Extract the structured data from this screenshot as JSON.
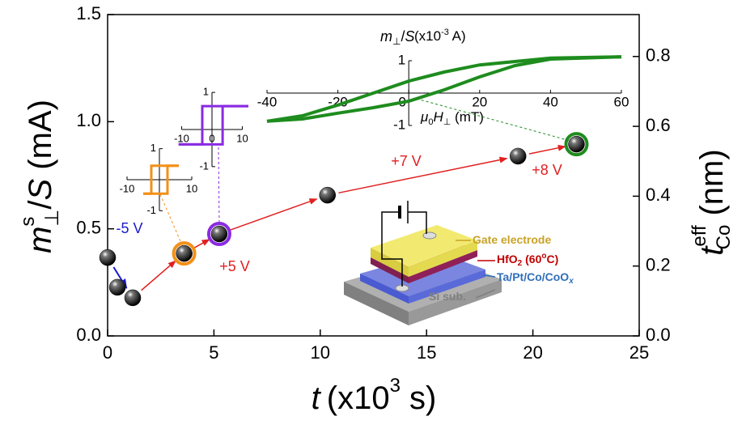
{
  "chart_data": {
    "type": "scatter",
    "x_label": [
      "t",
      "(x10",
      "3",
      " s)"
    ],
    "y_label": [
      "m",
      "s",
      "⊥",
      "/",
      "S",
      " (mA)"
    ],
    "y2_label": [
      "t",
      "eff",
      "Co",
      " (nm)"
    ],
    "xlim": [
      0,
      25
    ],
    "xticks": [
      0,
      5,
      10,
      15,
      20,
      25
    ],
    "ylim": [
      0,
      1.5
    ],
    "yticks": [
      {
        "value": 0,
        "label": "0.0"
      },
      {
        "value": 0.5,
        "label": "0.5"
      },
      {
        "value": 1,
        "label": "1.0"
      },
      {
        "value": 1.5,
        "label": "1.5"
      }
    ],
    "y2lim": [
      0,
      0.92
    ],
    "y2ticks": [
      {
        "value": 0,
        "label": "0.0"
      },
      {
        "value": 0.2,
        "label": "0.2"
      },
      {
        "value": 0.4,
        "label": "0.4"
      },
      {
        "value": 0.6,
        "label": "0.6"
      },
      {
        "value": 0.8,
        "label": "0.8"
      }
    ],
    "series": [
      {
        "color": "#000000",
        "x": [
          0,
          0.46,
          1.18,
          3.6,
          5.25,
          10.34,
          19.3,
          22.05
        ],
        "values": [
          0.366,
          0.227,
          0.178,
          0.385,
          0.476,
          0.657,
          0.839,
          0.895
        ]
      }
    ],
    "annotations": [
      {
        "text": "-5 V",
        "color": "#1a1acc"
      },
      {
        "text": "+5 V",
        "color": "#e02020"
      },
      {
        "text": "+7 V",
        "color": "#e02020"
      },
      {
        "text": "+8 V",
        "color": "#e02020"
      }
    ],
    "insets": [
      {
        "type": "line",
        "color": "#f39018",
        "xlim": [
          -12,
          12
        ],
        "ylim": [
          -1.2,
          1.2
        ],
        "xticks": [
          -10,
          10
        ],
        "yticks": [
          -1,
          1
        ],
        "series": [
          {
            "x": [
              -5,
              2.5,
              2.5,
              6
            ],
            "values": [
              -0.45,
              -0.45,
              0.45,
              0.45
            ]
          },
          {
            "x": [
              6,
              -2.5,
              -2.5,
              -5
            ],
            "values": [
              0.45,
              0.45,
              -0.45,
              -0.45
            ]
          }
        ]
      },
      {
        "type": "line",
        "color": "#8a2be2",
        "xlim": [
          -12,
          12
        ],
        "ylim": [
          -1.2,
          1.2
        ],
        "xticks": [
          -10,
          0,
          10
        ],
        "yticks": [
          -1,
          1
        ],
        "series": [
          {
            "x": [
              -11,
              3.5,
              3.5,
              12
            ],
            "values": [
              -0.4,
              -0.4,
              0.63,
              0.63
            ]
          },
          {
            "x": [
              12,
              -3.2,
              -3.2,
              -11
            ],
            "values": [
              0.63,
              0.63,
              -0.4,
              -0.4
            ]
          }
        ]
      },
      {
        "type": "line",
        "color": "#1e8c1e",
        "xlim": [
          -40,
          60
        ],
        "ylim": [
          -1.2,
          1.2
        ],
        "xticks": [
          -40,
          -20,
          0,
          20,
          40,
          60
        ],
        "yticks": [
          -1,
          1
        ],
        "y_label": [
          "m",
          "⊥",
          "/",
          "S"
        ],
        "unit_label": [
          "(x10",
          "-3",
          " A)"
        ],
        "x_label": [
          "μ",
          "0",
          "H",
          "⊥",
          " (mT)"
        ],
        "series": [
          {
            "x": [
              60,
              40,
              20,
              10,
              0,
              -10,
              -20,
              -30,
              -40
            ],
            "values": [
              1.12,
              1.08,
              0.87,
              0.65,
              0.37,
              0.0,
              -0.37,
              -0.7,
              -0.87
            ]
          },
          {
            "x": [
              -40,
              -30,
              -20,
              -10,
              0,
              10,
              20,
              30,
              40,
              60
            ],
            "values": [
              -0.87,
              -0.8,
              -0.62,
              -0.45,
              -0.25,
              0.1,
              0.5,
              0.85,
              1.05,
              1.12
            ]
          }
        ]
      }
    ],
    "device_labels": [
      {
        "parts": [
          "Gate electrode"
        ],
        "color": "#c9a227"
      },
      {
        "parts": [
          "HfO",
          "2",
          " (60",
          "o",
          "C)"
        ],
        "color": "#c00000"
      },
      {
        "parts": [
          "Ta/Pt/Co/CoO",
          "x"
        ],
        "color": "#2f6fba"
      },
      {
        "parts": [
          "Si sub."
        ],
        "color": "#808080"
      }
    ]
  }
}
